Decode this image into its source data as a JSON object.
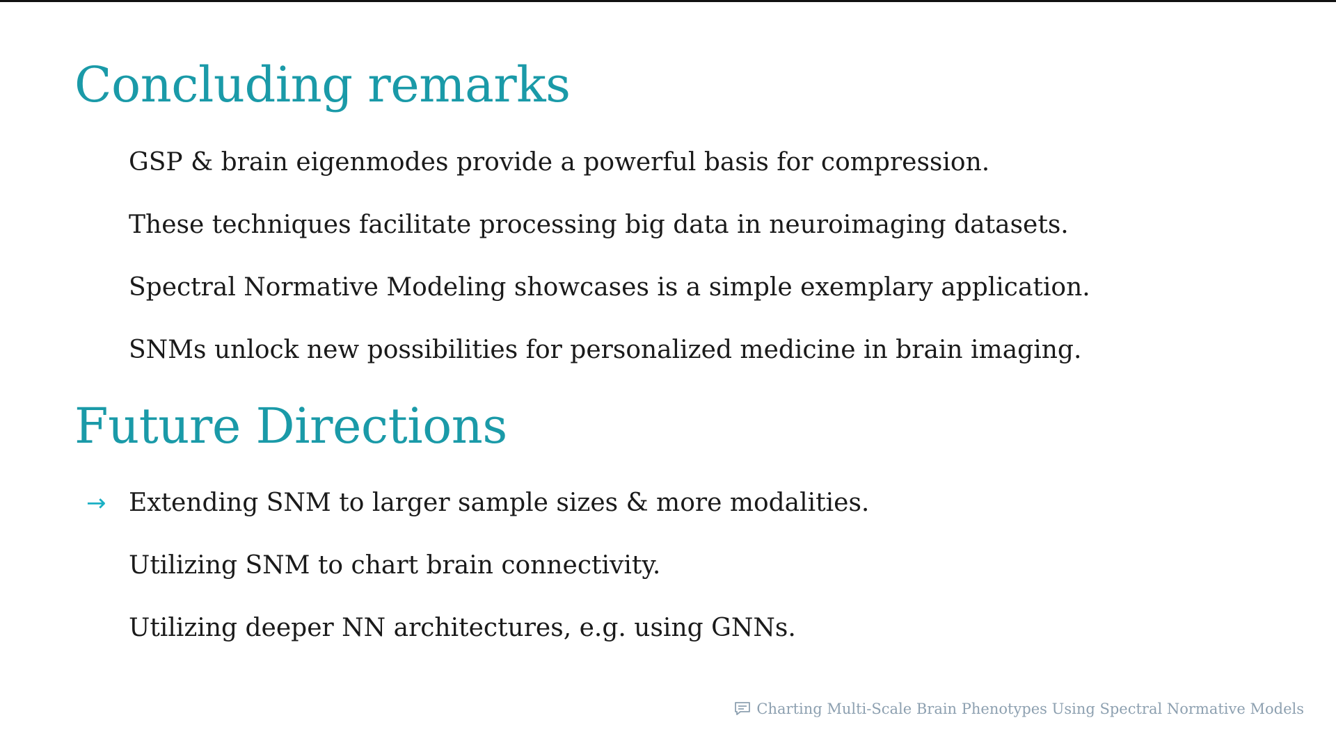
{
  "sections": [
    {
      "title": "Concluding remarks",
      "items": [
        {
          "text": "GSP & brain eigenmodes provide a powerful basis for compression."
        },
        {
          "text": "These techniques facilitate processing big data in neuroimaging datasets."
        },
        {
          "text": "Spectral Normative Modeling showcases is a simple exemplary application."
        },
        {
          "text": "SNMs unlock new possibilities for personalized medicine in brain imaging."
        }
      ]
    },
    {
      "title": "Future Directions",
      "items": [
        {
          "text": "Extending SNM to larger sample sizes & more modalities.",
          "marker": "→"
        },
        {
          "text": "Utilizing SNM to chart brain connectivity."
        },
        {
          "text": "Utilizing deeper NN architectures, e.g. using GNNs."
        }
      ]
    }
  ],
  "footer": {
    "icon": "comment-icon",
    "text": "Charting Multi-Scale Brain Phenotypes Using Spectral Normative Models"
  },
  "colors": {
    "heading": "#1a9aa8",
    "arrow": "#1ab0c4",
    "footer": "#8da0b0"
  }
}
